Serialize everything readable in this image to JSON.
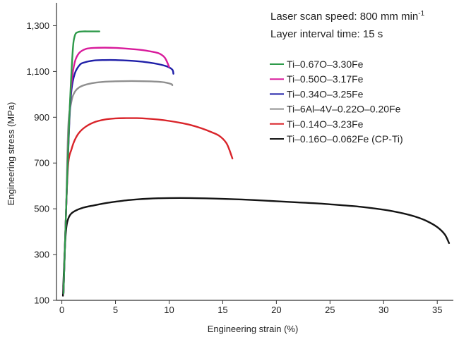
{
  "chart_data": {
    "type": "line",
    "xlabel": "Engineering strain (%)",
    "ylabel": "Engineering stress (MPa)",
    "xlim": [
      -0.5,
      36.5
    ],
    "ylim": [
      100,
      1400
    ],
    "xticks": [
      0,
      5,
      10,
      15,
      20,
      25,
      30,
      35
    ],
    "xtick_labels": [
      "0",
      "5",
      "10",
      "15",
      "20",
      "25",
      "30",
      "35"
    ],
    "yticks": [
      100,
      300,
      500,
      700,
      900,
      1100,
      1300
    ],
    "ytick_labels": [
      "100",
      "300",
      "500",
      "700",
      "900",
      "1,100",
      "1,300"
    ],
    "annotations": {
      "speed_text": "Laser scan speed: 800 mm min",
      "speed_sup": "-1",
      "interval_text": "Layer interval time: 15 s"
    },
    "legend_position": "right",
    "grid": false,
    "series": [
      {
        "name": "Ti–0.67O–3.30Fe",
        "color": "#2e9a4a",
        "x": [
          0.15,
          0.4,
          0.7,
          1.0,
          1.2,
          1.5,
          2.0,
          2.5,
          3.0,
          3.5
        ],
        "y": [
          130,
          500,
          900,
          1180,
          1255,
          1272,
          1275,
          1275,
          1275,
          1275
        ]
      },
      {
        "name": "Ti–0.50O–3.17Fe",
        "color": "#d81b9b",
        "x": [
          0.15,
          0.4,
          0.7,
          0.9,
          1.2,
          1.6,
          2.2,
          3.0,
          4.0,
          5.0,
          6.0,
          7.0,
          8.0,
          9.0,
          9.6,
          10.0
        ],
        "y": [
          130,
          500,
          900,
          1050,
          1140,
          1180,
          1198,
          1203,
          1204,
          1203,
          1200,
          1196,
          1190,
          1180,
          1160,
          1120
        ]
      },
      {
        "name": "Ti–0.34O–3.25Fe",
        "color": "#1f1fa8",
        "x": [
          0.15,
          0.4,
          0.7,
          0.9,
          1.2,
          1.6,
          2.0,
          3.0,
          4.0,
          5.0,
          6.0,
          7.0,
          8.0,
          9.0,
          9.8,
          10.3,
          10.4
        ],
        "y": [
          130,
          500,
          880,
          1020,
          1090,
          1125,
          1138,
          1148,
          1150,
          1150,
          1148,
          1145,
          1140,
          1132,
          1122,
          1108,
          1090
        ]
      },
      {
        "name": "Ti–6Al–4V–0.22O–0.20Fe",
        "color": "#8f8f8f",
        "x": [
          0.15,
          0.4,
          0.6,
          0.9,
          1.2,
          1.6,
          2.2,
          3.0,
          4.0,
          5.0,
          6.0,
          7.0,
          8.0,
          9.0,
          9.6,
          10.2,
          10.3
        ],
        "y": [
          130,
          500,
          860,
          970,
          1010,
          1030,
          1042,
          1050,
          1055,
          1057,
          1058,
          1058,
          1057,
          1055,
          1052,
          1045,
          1040
        ]
      },
      {
        "name": "Ti–0.14O–3.23Fe",
        "color": "#d9242a",
        "x": [
          0.15,
          0.4,
          0.6,
          0.9,
          1.2,
          1.6,
          2.2,
          3.0,
          4.0,
          5.0,
          6.0,
          7.0,
          8.0,
          9.0,
          10.0,
          11.0,
          12.0,
          13.0,
          14.0,
          14.7,
          15.3,
          15.6,
          15.9
        ],
        "y": [
          130,
          500,
          700,
          760,
          800,
          832,
          858,
          878,
          890,
          895,
          896,
          896,
          894,
          890,
          884,
          876,
          866,
          852,
          834,
          818,
          790,
          760,
          720
        ]
      },
      {
        "name": "Ti–0.16O–0.062Fe (CP-Ti)",
        "color": "#141414",
        "x": [
          0.1,
          0.25,
          0.4,
          0.55,
          0.8,
          1.2,
          2.0,
          3.0,
          4.0,
          5.0,
          6.0,
          7.0,
          8.0,
          9.0,
          10.0,
          12.0,
          14.0,
          16.0,
          18.0,
          20.0,
          22.0,
          24.0,
          26.0,
          28.0,
          30.0,
          31.0,
          32.0,
          33.0,
          34.0,
          35.0,
          35.7,
          36.1
        ],
        "y": [
          120,
          300,
          410,
          450,
          475,
          490,
          505,
          515,
          524,
          531,
          537,
          541,
          544,
          546,
          547,
          547,
          545,
          542,
          538,
          533,
          528,
          523,
          516,
          508,
          496,
          488,
          478,
          465,
          447,
          420,
          388,
          350
        ]
      }
    ]
  }
}
